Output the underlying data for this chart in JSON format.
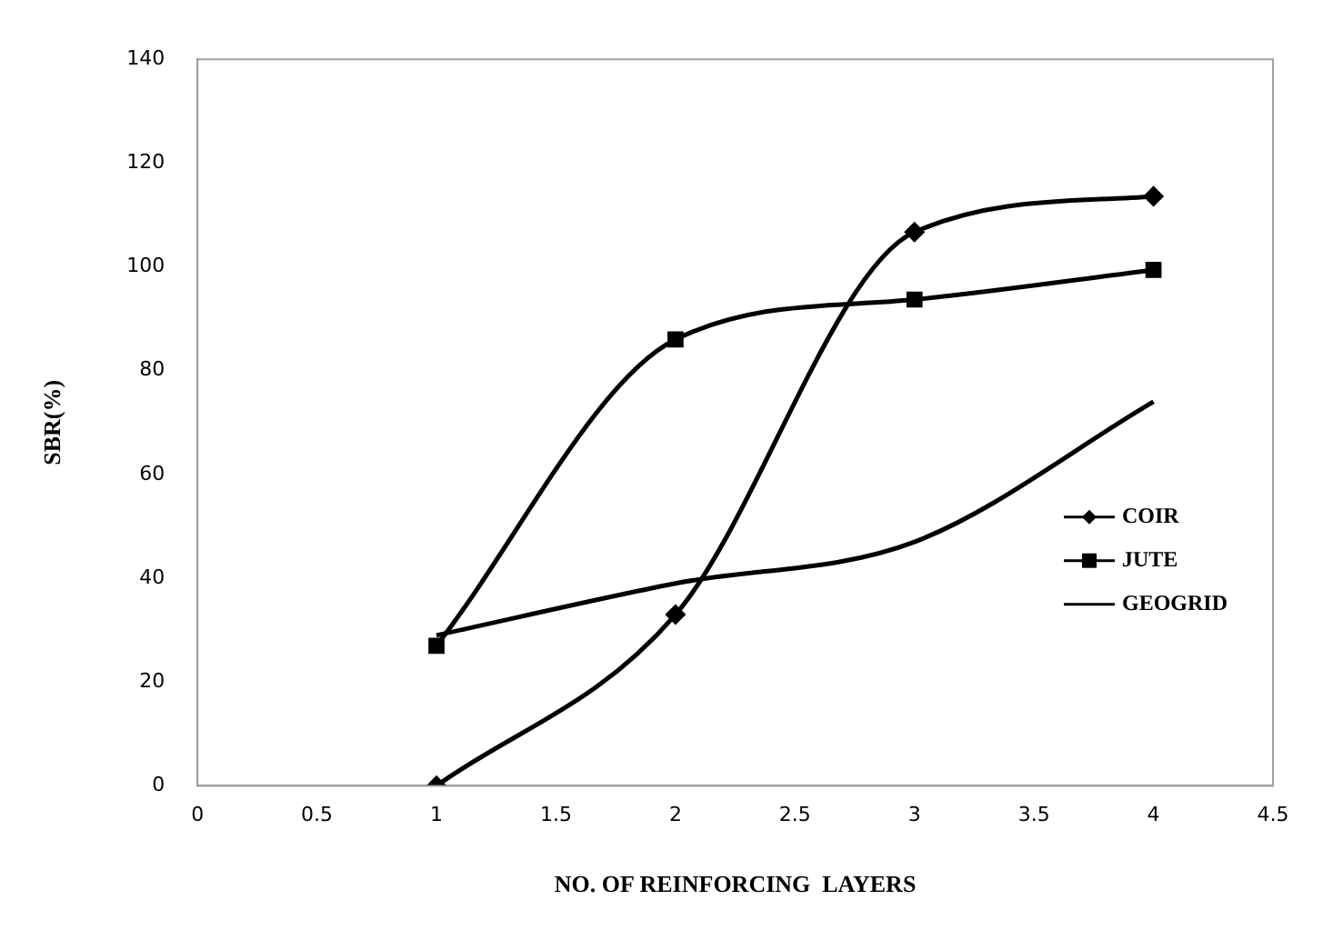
{
  "chart_data": {
    "type": "line",
    "xlabel": "NO. OF REINFORCING  LAYERS",
    "ylabel": "SBR(%)",
    "x": [
      1,
      2,
      3,
      4
    ],
    "series": [
      {
        "name": "COIR",
        "color": "#000000",
        "values": [
          0,
          33,
          106.7,
          113.6
        ],
        "marker": "diamond"
      },
      {
        "name": "JUTE",
        "color": "#000000",
        "values": [
          27,
          86,
          93.7,
          99.4
        ],
        "marker": "square"
      },
      {
        "name": "GEOGRID",
        "color": "#000000",
        "values": [
          29,
          39,
          47,
          74
        ],
        "marker": "none"
      }
    ],
    "xlim": [
      0,
      4.5
    ],
    "xticks": [
      0,
      0.5,
      1,
      1.5,
      2,
      2.5,
      3,
      3.5,
      4,
      4.5
    ],
    "ylim": [
      0,
      140
    ],
    "yticks": [
      0,
      20,
      40,
      60,
      80,
      100,
      120,
      140
    ],
    "grid": false,
    "legend": "right",
    "line_style": "solid"
  }
}
